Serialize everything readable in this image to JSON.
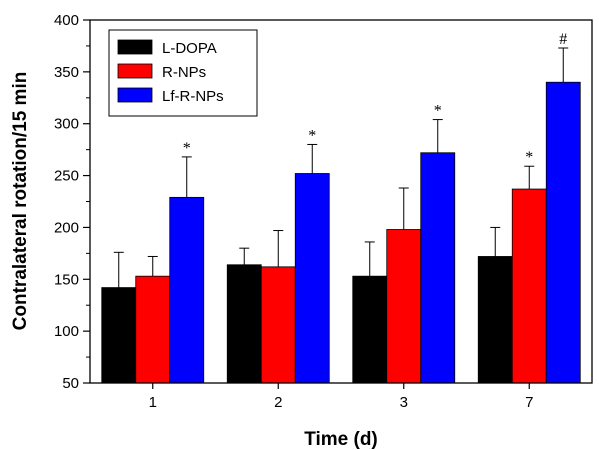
{
  "chart_data": {
    "type": "bar",
    "xlabel": "Time (d)",
    "ylabel": "Contralateral rotation/15 min",
    "categories": [
      "1",
      "2",
      "3",
      "7"
    ],
    "ylim": [
      50,
      400
    ],
    "yticks": [
      50,
      100,
      150,
      200,
      250,
      300,
      350,
      400
    ],
    "grid": false,
    "legend_position": "top-left",
    "error_bars": "upper only",
    "series": [
      {
        "name": "L-DOPA",
        "color": "#000000",
        "values": [
          142,
          164,
          153,
          172
        ],
        "errors": [
          34,
          16,
          33,
          28
        ],
        "annotations": [
          "",
          "",
          "",
          ""
        ]
      },
      {
        "name": "R-NPs",
        "color": "#ff0000",
        "values": [
          153,
          162,
          198,
          237
        ],
        "errors": [
          19,
          35,
          40,
          22
        ],
        "annotations": [
          "",
          "",
          "",
          "*"
        ]
      },
      {
        "name": "Lf-R-NPs",
        "color": "#0000ff",
        "values": [
          229,
          252,
          272,
          340
        ],
        "errors": [
          39,
          28,
          32,
          33
        ],
        "annotations": [
          "*",
          "*",
          "*",
          "#"
        ]
      }
    ]
  }
}
